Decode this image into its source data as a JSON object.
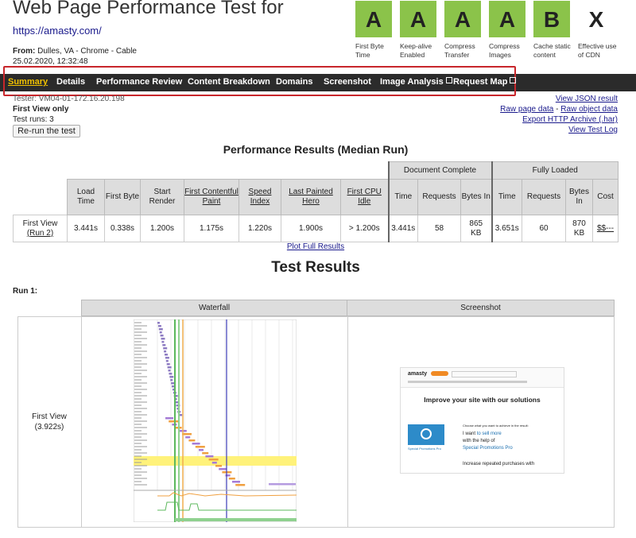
{
  "header": {
    "title": "Web Page Performance Test for",
    "url": "https://amasty.com/",
    "from_label": "From:",
    "location": "Dulles, VA - Chrome - Cable",
    "date": "25.02.2020, 12:32:48"
  },
  "grades": [
    {
      "grade": "A",
      "label": "First Byte Time"
    },
    {
      "grade": "A",
      "label": "Keep-alive Enabled"
    },
    {
      "grade": "A",
      "label": "Compress Transfer"
    },
    {
      "grade": "A",
      "label": "Compress Images"
    },
    {
      "grade": "B",
      "label": "Cache static content"
    },
    {
      "grade": "X",
      "label": "Effective use of CDN"
    }
  ],
  "nav": [
    "Summary",
    "Details",
    "Performance Review",
    "Content Breakdown",
    "Domains",
    "Screenshot",
    "Image Analysis",
    "Request Map"
  ],
  "test_info": {
    "tester": "Tester: VM04-01-172.16.20.198",
    "view": "First View only",
    "runs": "Test runs: 3",
    "rerun": "Re-run the test"
  },
  "links": {
    "json": "View JSON result",
    "raw_page": "Raw page data",
    "separator": "-",
    "raw_object": "Raw object data",
    "har": "Export HTTP Archive (.har)",
    "log": "View Test Log"
  },
  "performance": {
    "title": "Performance Results (Median Run)",
    "groups": [
      "Document Complete",
      "Fully Loaded"
    ],
    "columns": [
      "Load Time",
      "First Byte",
      "Start Render",
      "First Contentful Paint",
      "Speed Index",
      "Last Painted Hero",
      "First CPU Idle",
      "Time",
      "Requests",
      "Bytes In",
      "Time",
      "Requests",
      "Bytes In",
      "Cost"
    ],
    "row": {
      "label": "First View",
      "run": "(Run 2)",
      "cells": [
        "3.441s",
        "0.338s",
        "1.200s",
        "1.175s",
        "1.220s",
        "1.900s",
        "> 1.200s",
        "3.441s",
        58,
        "865 KB",
        "3.651s",
        60,
        "870 KB",
        "$$---"
      ]
    },
    "plot_link": "Plot Full Results"
  },
  "results": {
    "title": "Test Results",
    "run": "Run 1:",
    "columns": [
      "Waterfall",
      "Screenshot"
    ],
    "row_label": "First View",
    "row_time": "(3.922s)"
  },
  "screenshot": {
    "logo": "amasty",
    "heading": "Improve your site with our solutions",
    "prompt": "Choose what you want to achieve in the result:",
    "want": "I want",
    "goal": "to sell more",
    "help": "with the help of",
    "product": "Special Promotions Pro",
    "tail": "Increase repeated purchases with"
  }
}
